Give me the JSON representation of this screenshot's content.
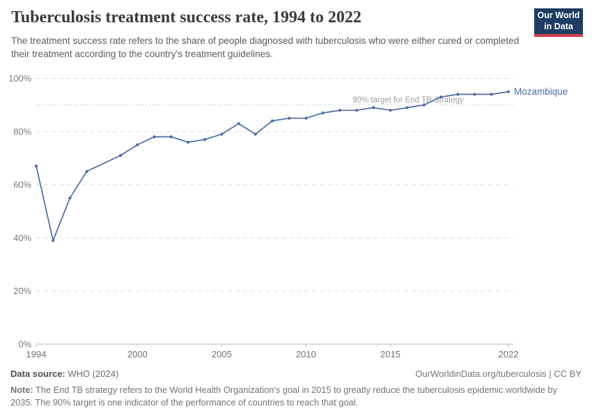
{
  "header": {
    "title": "Tuberculosis treatment success rate, 1994 to 2022",
    "subtitle": "The treatment success rate refers to the share of people diagnosed with tuberculosis who were either cured or completed their treatment according to the country's treatment guidelines.",
    "logo": {
      "line1": "Our World",
      "line2": "in Data",
      "bg_color": "#1d3d63",
      "bar_color": "#d6404f"
    }
  },
  "chart_data": {
    "type": "line",
    "title": "Tuberculosis treatment success rate, 1994 to 2022",
    "xlabel": "",
    "ylabel": "",
    "xlim": [
      1994,
      2022
    ],
    "ylim": [
      0,
      100
    ],
    "x_ticks": [
      1994,
      2000,
      2005,
      2010,
      2015,
      2022
    ],
    "y_ticks": [
      0,
      20,
      40,
      60,
      80,
      100
    ],
    "y_tick_suffix": "%",
    "grid": true,
    "legend_position": "end-of-line",
    "target_line": {
      "value": 90,
      "label": "90% target for End TB Strategy",
      "line_color": "#c8c8c8",
      "label_color": "#9e9e9e"
    },
    "series": [
      {
        "name": "Mozambique",
        "color": "#4a6ba8",
        "points": [
          [
            1994,
            67
          ],
          [
            1995,
            39
          ],
          [
            1996,
            55
          ],
          [
            1997,
            65
          ],
          [
            1999,
            71
          ],
          [
            2000,
            75
          ],
          [
            2001,
            78
          ],
          [
            2002,
            78
          ],
          [
            2003,
            76
          ],
          [
            2004,
            77
          ],
          [
            2005,
            79
          ],
          [
            2006,
            83
          ],
          [
            2007,
            79
          ],
          [
            2008,
            84
          ],
          [
            2009,
            85
          ],
          [
            2010,
            85
          ],
          [
            2011,
            87
          ],
          [
            2012,
            88
          ],
          [
            2013,
            88
          ],
          [
            2014,
            89
          ],
          [
            2015,
            88
          ],
          [
            2016,
            89
          ],
          [
            2017,
            90
          ],
          [
            2018,
            93
          ],
          [
            2019,
            94
          ],
          [
            2020,
            94
          ],
          [
            2021,
            94
          ],
          [
            2022,
            95
          ]
        ]
      }
    ]
  },
  "footer": {
    "datasource_label": "Data source:",
    "datasource_value": " WHO (2024)",
    "attribution": "OurWorldinData.org/tuberculosis | CC BY",
    "note_label": "Note:",
    "note_text": " The End TB strategy refers to the World Health Organization's goal in 2015 to greatly reduce the tuberculosis epidemic worldwide by 2035. The 90% target is one indicator of the performance of countries to reach that goal."
  }
}
